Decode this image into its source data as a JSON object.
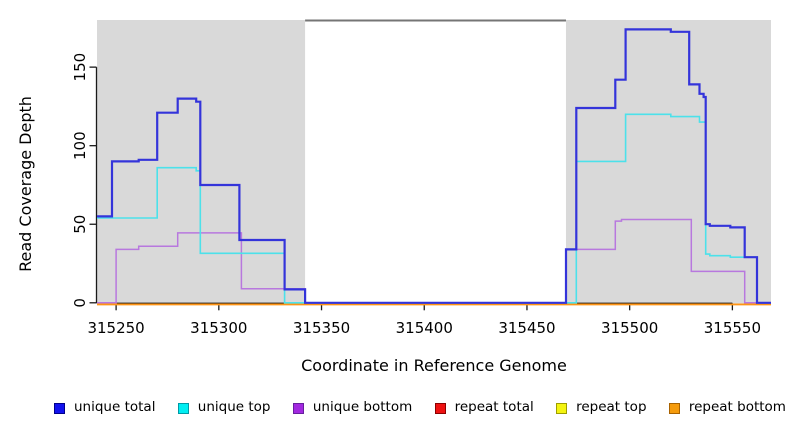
{
  "chart_data": {
    "type": "line",
    "subtype": "step-coverage-plot",
    "title": "",
    "xlabel": "Coordinate in Reference Genome",
    "ylabel": "Read Coverage Depth",
    "xlim": [
      315240.7,
      315568.8
    ],
    "ylim": [
      0,
      180
    ],
    "xticks": [
      315250,
      315300,
      315350,
      315400,
      315450,
      315500,
      315550
    ],
    "yticks": [
      0,
      50,
      100,
      150
    ],
    "grid": false,
    "legend_position": "bottom",
    "shaded_regions": {
      "color": "#d9d9d9",
      "ranges": [
        [
          315240.7,
          315342
        ],
        [
          315469,
          315568.8
        ]
      ]
    },
    "gap_top_border": {
      "from": 315342,
      "to": 315469,
      "color": "#757575"
    },
    "series": [
      {
        "name": "repeat total",
        "color": "#dd1111",
        "points": [
          [
            315240.7,
            0
          ]
        ]
      },
      {
        "name": "repeat top",
        "color": "#f2ee0e",
        "points": [
          [
            315240.7,
            0
          ]
        ]
      },
      {
        "name": "repeat bottom",
        "color": "#ff9414",
        "points": [
          [
            315240.7,
            0
          ]
        ]
      },
      {
        "name": "unique bottom",
        "color": "#b878de",
        "points": [
          [
            315240.7,
            0
          ],
          [
            315250,
            34
          ],
          [
            315261,
            36
          ],
          [
            315280,
            44.5
          ],
          [
            315311,
            9
          ],
          [
            315342,
            0
          ],
          [
            315469,
            34
          ],
          [
            315493,
            52
          ],
          [
            315496,
            53
          ],
          [
            315530,
            20
          ],
          [
            315556,
            0
          ]
        ]
      },
      {
        "name": "unique top",
        "color": "#4ce1ea",
        "points": [
          [
            315240.7,
            54
          ],
          [
            315270,
            86
          ],
          [
            315289,
            84
          ],
          [
            315291,
            31.5
          ],
          [
            315332,
            0
          ],
          [
            315474,
            90
          ],
          [
            315498,
            120
          ],
          [
            315520,
            118.5
          ],
          [
            315534,
            115
          ],
          [
            315537,
            31
          ],
          [
            315539,
            30
          ],
          [
            315549,
            29
          ],
          [
            315562,
            0
          ]
        ]
      },
      {
        "name": "unique total",
        "color": "#3434da",
        "points": [
          [
            315240.7,
            55
          ],
          [
            315248,
            90
          ],
          [
            315261,
            91
          ],
          [
            315270,
            121
          ],
          [
            315280,
            130
          ],
          [
            315289,
            128
          ],
          [
            315291,
            75
          ],
          [
            315310,
            40
          ],
          [
            315332,
            8.5
          ],
          [
            315342,
            0
          ],
          [
            315469,
            34
          ],
          [
            315474,
            124
          ],
          [
            315493,
            142
          ],
          [
            315498,
            174
          ],
          [
            315520,
            172.5
          ],
          [
            315529,
            139
          ],
          [
            315534,
            133
          ],
          [
            315536,
            131
          ],
          [
            315537,
            50
          ],
          [
            315539,
            49
          ],
          [
            315549,
            48
          ],
          [
            315556,
            29
          ],
          [
            315562,
            0
          ]
        ]
      }
    ],
    "legend": [
      {
        "label": "unique total",
        "fill": "#1212ee",
        "border": "#00008b"
      },
      {
        "label": "unique top",
        "fill": "#00eef2",
        "border": "#009aa6"
      },
      {
        "label": "unique bottom",
        "fill": "#a228e0",
        "border": "#671f9e"
      },
      {
        "label": "repeat total",
        "fill": "#ee1111",
        "border": "#8b0000"
      },
      {
        "label": "repeat top",
        "fill": "#f4f410",
        "border": "#9e9e00"
      },
      {
        "label": "repeat bottom",
        "fill": "#f59b0c",
        "border": "#a86200"
      }
    ]
  },
  "colors": {
    "background": "#ffffff",
    "shade": "#d9d9d9",
    "axis": "#1a1a1a",
    "text": "#000000"
  }
}
